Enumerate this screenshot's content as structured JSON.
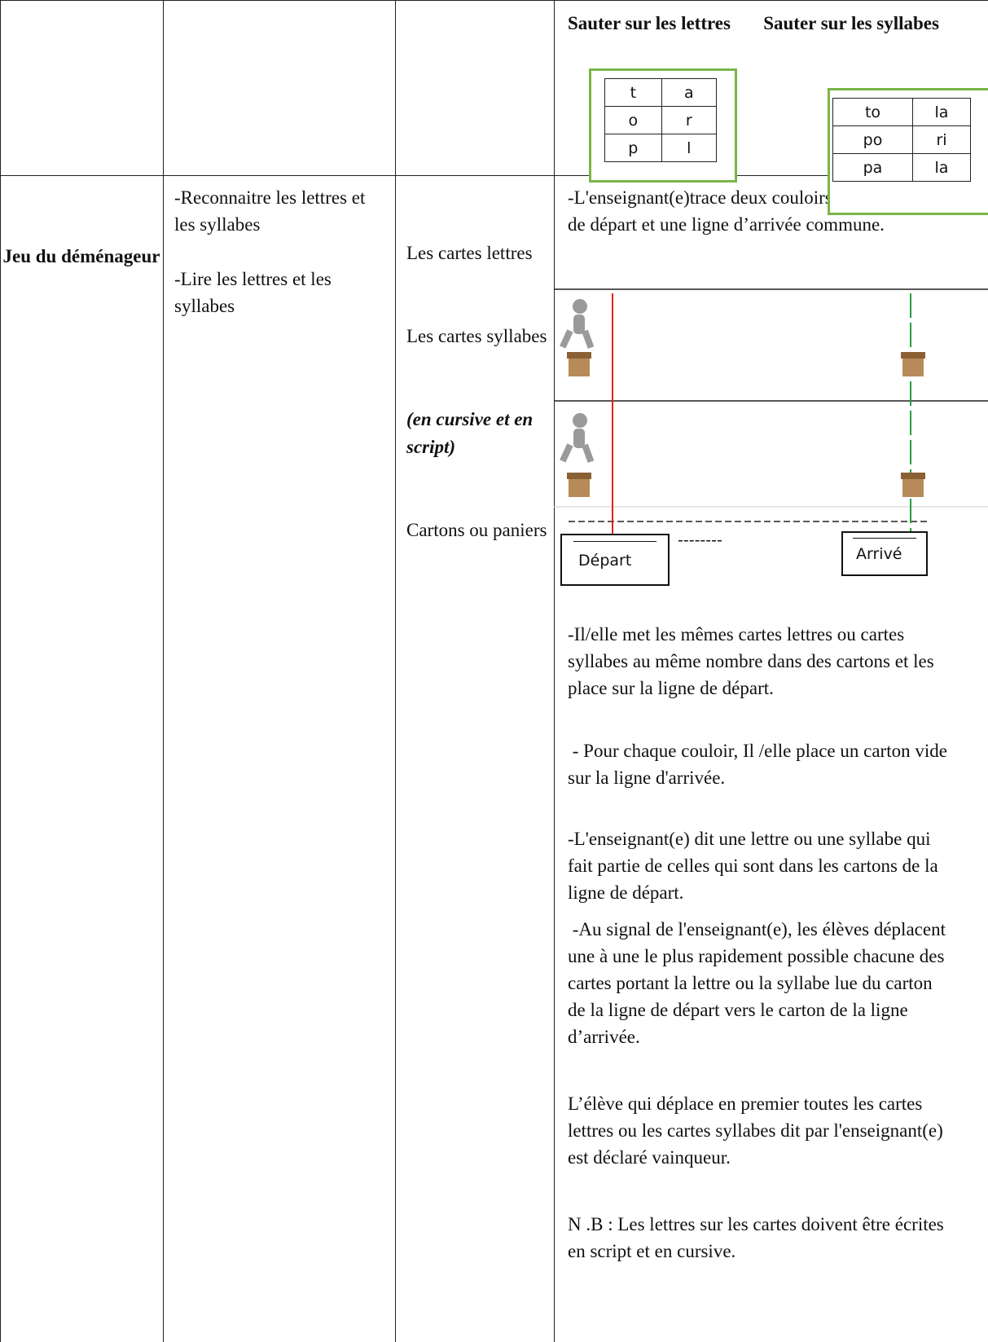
{
  "header": {
    "letters_title": "Sauter sur les lettres",
    "syllables_title": "Sauter sur les syllabes",
    "letter_grid": [
      [
        "t",
        "a"
      ],
      [
        "o",
        "r"
      ],
      [
        "p",
        "l"
      ]
    ],
    "syllable_grid": [
      [
        "to",
        "la"
      ],
      [
        "po",
        "ri"
      ],
      [
        "pa",
        "la"
      ]
    ]
  },
  "game": {
    "name": "Jeu du déménageur",
    "objectives": [
      "-Reconnaitre les lettres et les syllabes",
      "-Lire les lettres et les syllabes"
    ],
    "materials": [
      "Les cartes lettres",
      "Les cartes syllabes",
      "(en cursive et en script)",
      "Cartons ou paniers"
    ],
    "procedure": {
      "intro": "-L'enseignant(e)trace deux couloirs avec une ligne de départ et une ligne d’arrivée commune.",
      "diagram": {
        "start_label": "Départ",
        "dashes": "--------",
        "end_label": "Arrivé"
      },
      "steps": [
        "-Il/elle met les mêmes cartes lettres ou cartes syllabes au même nombre dans des cartons et les place sur la ligne de départ.",
        " - Pour chaque couloir, Il /elle place un carton vide sur la ligne d'arrivée.",
        "-L'enseignant(e) dit une lettre ou une syllabe qui fait partie de celles qui sont dans les cartons de la ligne de départ.",
        " -Au signal de l'enseignant(e), les élèves déplacent une à une le plus rapidement possible chacune des cartes portant la lettre ou la syllabe lue du carton de la ligne de départ vers le carton de la ligne d’arrivée.",
        "L’élève qui déplace en premier toutes les cartes lettres ou les cartes syllabes dit par l'enseignant(e) est déclaré vainqueur.",
        "N .B : Les lettres sur les cartes doivent être écrites en script et en cursive."
      ]
    }
  }
}
